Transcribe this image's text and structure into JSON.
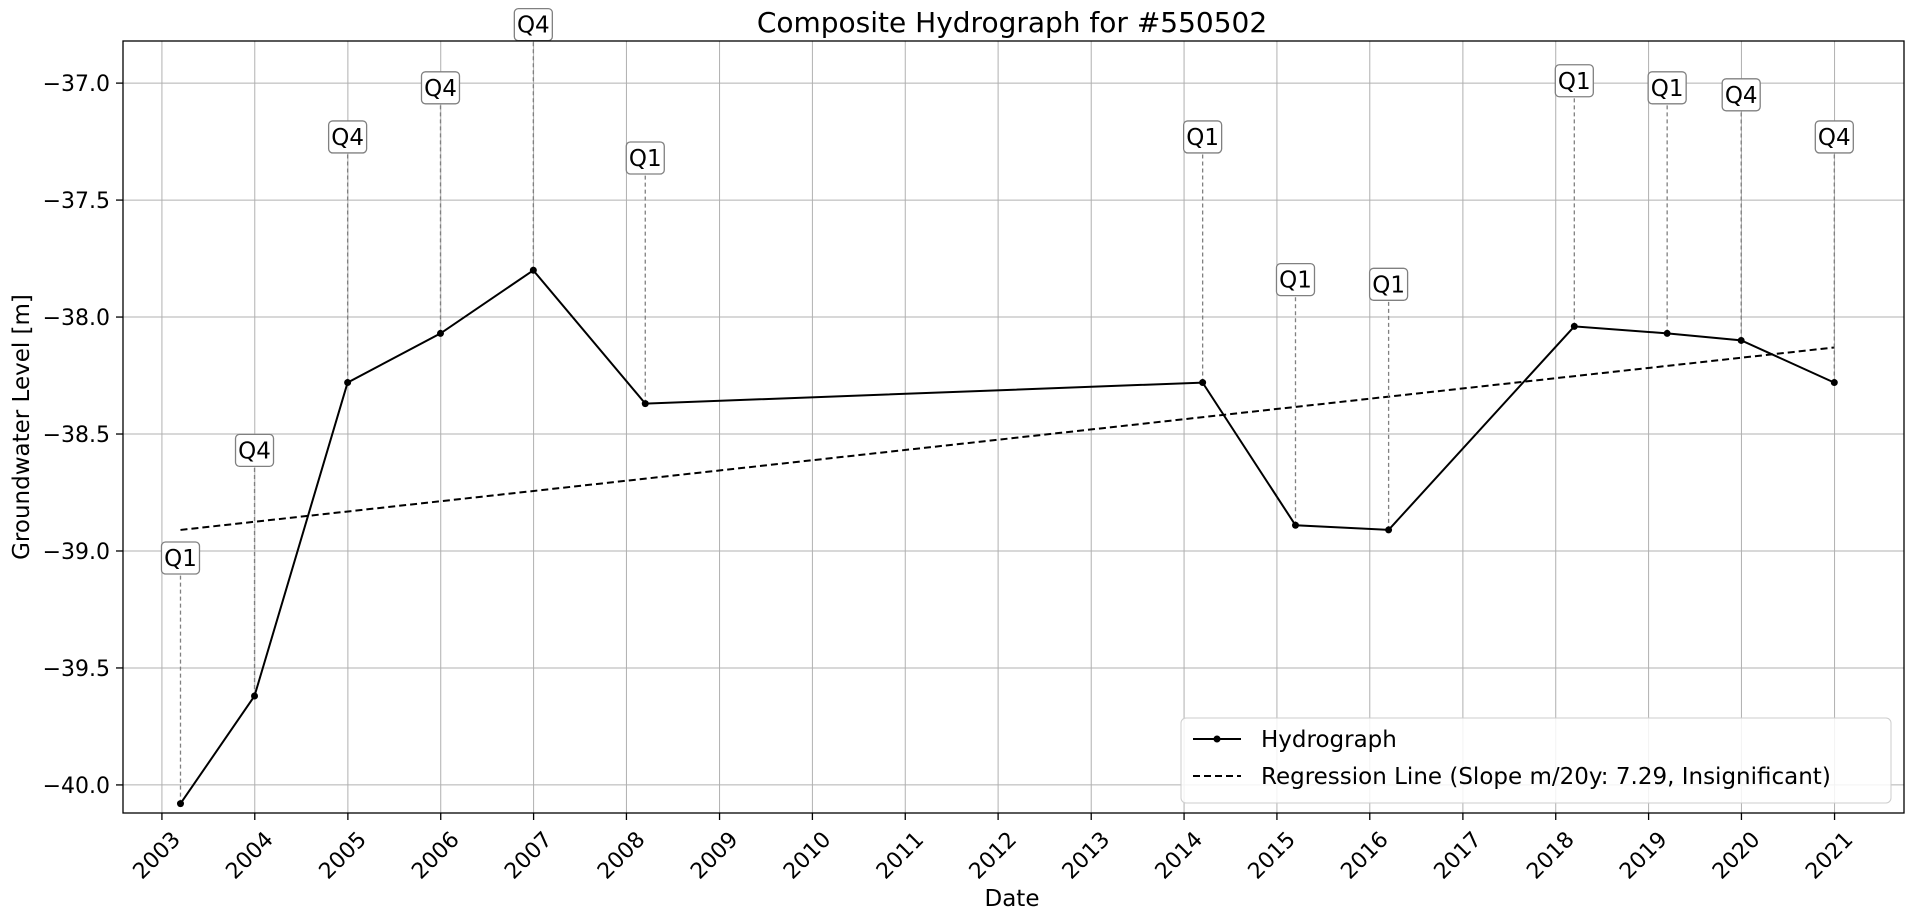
{
  "chart_data": {
    "type": "line",
    "title": "Composite Hydrograph for  #550502",
    "xlabel": "Date",
    "ylabel": "Groundwater Level [m]",
    "x_ticks": [
      "2003",
      "2004",
      "2005",
      "2006",
      "2007",
      "2008",
      "2009",
      "2010",
      "2011",
      "2012",
      "2013",
      "2014",
      "2015",
      "2016",
      "2017",
      "2018",
      "2019",
      "2020",
      "2021"
    ],
    "y_ticks": [
      "−37.0",
      "−37.5",
      "−38.0",
      "−38.5",
      "−39.0",
      "−39.5",
      "−40.0"
    ],
    "xlim": [
      "2002-08-01",
      "2021-10-01"
    ],
    "ylim": [
      -40.12,
      -36.82
    ],
    "grid": true,
    "legend_position": "lower-right",
    "series": [
      {
        "name": "Hydrograph",
        "style": "solid-with-markers",
        "color": "#000000",
        "points": [
          {
            "date": "2003-03-15",
            "value": -40.08,
            "label": "Q1"
          },
          {
            "date": "2003-12-31",
            "value": -39.62,
            "label": "Q4"
          },
          {
            "date": "2004-12-31",
            "value": -38.28,
            "label": "Q4"
          },
          {
            "date": "2005-12-31",
            "value": -38.07,
            "label": "Q4"
          },
          {
            "date": "2006-12-31",
            "value": -37.8,
            "label": "Q4"
          },
          {
            "date": "2008-03-15",
            "value": -38.37,
            "label": "Q1"
          },
          {
            "date": "2014-03-15",
            "value": -38.28,
            "label": "Q1"
          },
          {
            "date": "2015-03-15",
            "value": -38.89,
            "label": "Q1"
          },
          {
            "date": "2016-03-15",
            "value": -38.91,
            "label": "Q1"
          },
          {
            "date": "2018-03-15",
            "value": -38.04,
            "label": "Q1"
          },
          {
            "date": "2019-03-15",
            "value": -38.07,
            "label": "Q1"
          },
          {
            "date": "2019-12-31",
            "value": -38.1,
            "label": "Q4"
          },
          {
            "date": "2020-12-31",
            "value": -38.28,
            "label": "Q4"
          }
        ]
      },
      {
        "name": "Regression Line (Slope m/20y: 7.29, Insignificant)",
        "style": "dashed",
        "color": "#000000",
        "points": [
          {
            "date": "2003-03-15",
            "value": -38.91
          },
          {
            "date": "2020-12-31",
            "value": -38.13
          }
        ]
      }
    ]
  }
}
